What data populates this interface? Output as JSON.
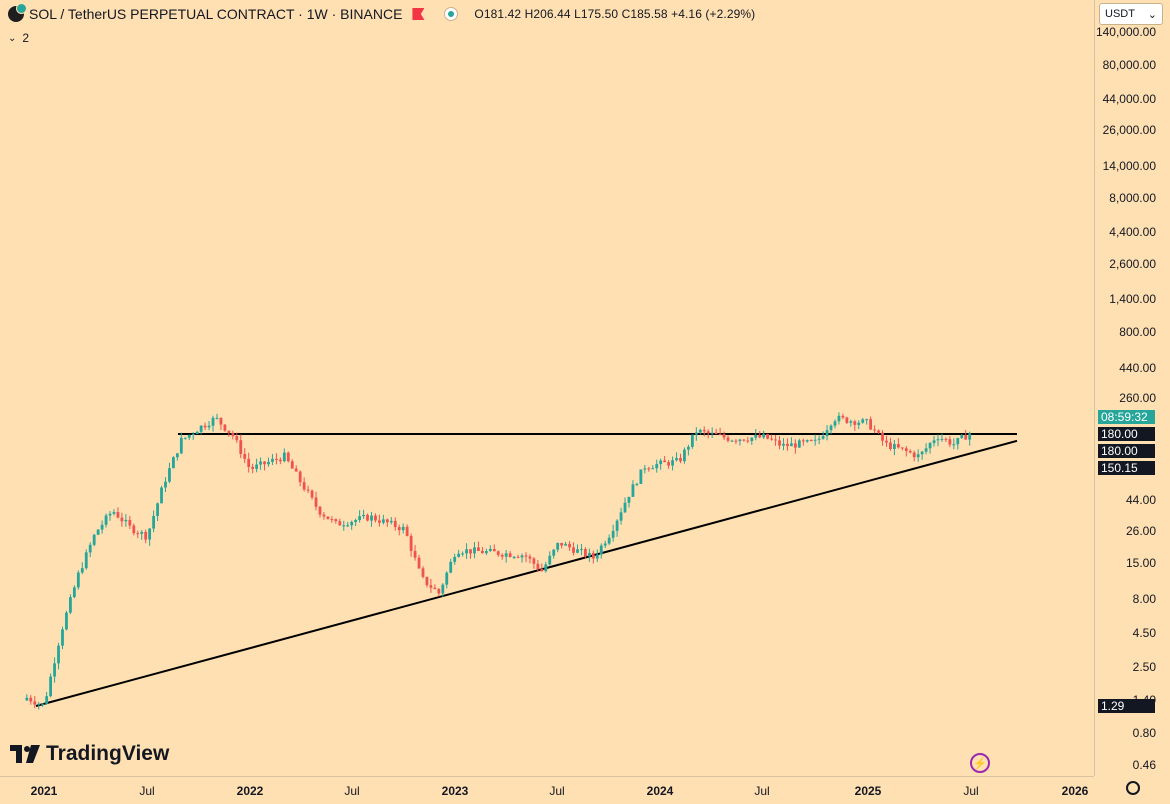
{
  "header": {
    "symbol_title": "SOL / TetherUS PERPETUAL CONTRACT · 1W · BINANCE",
    "ohlc": "O181.42  H206.44  L175.50  C185.58  +4.16 (+2.29%)"
  },
  "indicators": {
    "collapse_label": "2"
  },
  "price_axis": {
    "currency": "USDT",
    "labels": [
      "140,000.00",
      "80,000.00",
      "44,000.00",
      "26,000.00",
      "14,000.00",
      "8,000.00",
      "4,400.00",
      "2,600.00",
      "1,400.00",
      "800.00",
      "440.00",
      "260.00",
      "44.00",
      "26.00",
      "15.00",
      "8.00",
      "4.50",
      "2.50",
      "1.40",
      "0.80",
      "0.46"
    ],
    "tags": {
      "countdown": "08:59:32",
      "level_1": "180.00",
      "level_2": "180.00",
      "level_3": "150.15",
      "low_level": "1.29"
    }
  },
  "time_axis": {
    "labels": [
      "2021",
      "Jul",
      "2022",
      "Jul",
      "2023",
      "Jul",
      "2024",
      "Jul",
      "2025",
      "Jul",
      "2026"
    ]
  },
  "branding": {
    "logo_text": "TradingView"
  },
  "colors": {
    "background": "#ffe0b2",
    "up": "#26a69a",
    "down": "#ef5350",
    "line": "#000000"
  },
  "chart_data": {
    "type": "candlestick",
    "scale": "log",
    "interval": "1W",
    "horizontal_resistance": 180.0,
    "rising_trendline": {
      "from": {
        "date": "2021-01",
        "price": 1.29
      },
      "to": {
        "date": "2025-09",
        "price": 150.15
      }
    },
    "approximate_path": [
      {
        "date": "2020-12",
        "price": 1.5
      },
      {
        "date": "2021-01",
        "price": 1.3
      },
      {
        "date": "2021-02",
        "price": 5
      },
      {
        "date": "2021-03",
        "price": 14
      },
      {
        "date": "2021-04",
        "price": 30
      },
      {
        "date": "2021-05",
        "price": 45
      },
      {
        "date": "2021-06",
        "price": 33
      },
      {
        "date": "2021-07",
        "price": 28
      },
      {
        "date": "2021-08",
        "price": 75
      },
      {
        "date": "2021-09",
        "price": 160
      },
      {
        "date": "2021-10",
        "price": 200
      },
      {
        "date": "2021-11",
        "price": 240
      },
      {
        "date": "2021-12",
        "price": 175
      },
      {
        "date": "2022-01",
        "price": 95
      },
      {
        "date": "2022-03",
        "price": 120
      },
      {
        "date": "2022-05",
        "price": 45
      },
      {
        "date": "2022-06",
        "price": 35
      },
      {
        "date": "2022-08",
        "price": 40
      },
      {
        "date": "2022-10",
        "price": 32
      },
      {
        "date": "2022-11",
        "price": 13
      },
      {
        "date": "2022-12",
        "price": 10
      },
      {
        "date": "2023-01",
        "price": 22
      },
      {
        "date": "2023-03",
        "price": 21
      },
      {
        "date": "2023-05",
        "price": 20
      },
      {
        "date": "2023-06",
        "price": 15
      },
      {
        "date": "2023-07",
        "price": 25
      },
      {
        "date": "2023-09",
        "price": 19
      },
      {
        "date": "2023-10",
        "price": 30
      },
      {
        "date": "2023-11",
        "price": 58
      },
      {
        "date": "2023-12",
        "price": 100
      },
      {
        "date": "2024-02",
        "price": 110
      },
      {
        "date": "2024-03",
        "price": 190
      },
      {
        "date": "2024-05",
        "price": 165
      },
      {
        "date": "2024-07",
        "price": 170
      },
      {
        "date": "2024-08",
        "price": 145
      },
      {
        "date": "2024-10",
        "price": 155
      },
      {
        "date": "2024-11",
        "price": 240
      },
      {
        "date": "2025-01",
        "price": 220
      },
      {
        "date": "2025-02",
        "price": 150
      },
      {
        "date": "2025-04",
        "price": 120
      },
      {
        "date": "2025-05",
        "price": 175
      },
      {
        "date": "2025-06",
        "price": 150
      },
      {
        "date": "2025-07",
        "price": 185.58
      }
    ]
  }
}
